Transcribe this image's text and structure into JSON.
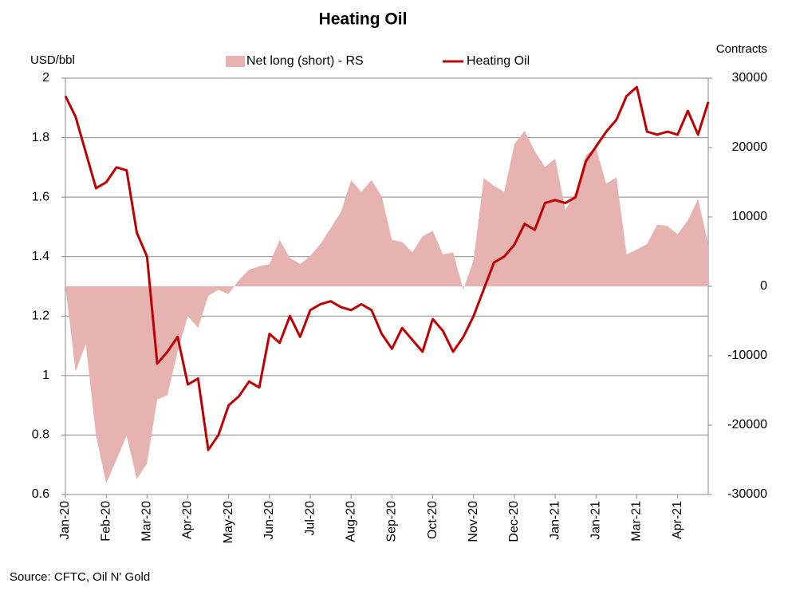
{
  "chart_data": {
    "type": "line",
    "title": "Heating Oil",
    "y_label": "USD/bbl",
    "y2_label": "Contracts",
    "source": "Source: CFTC, Oil N' Gold",
    "categories": [
      "Jan-20",
      null,
      null,
      null,
      "Feb-20",
      null,
      null,
      null,
      "Mar-20",
      null,
      null,
      null,
      "Apr-20",
      null,
      null,
      null,
      "May-20",
      null,
      null,
      null,
      "Jun-20",
      null,
      null,
      null,
      "Jul-20",
      null,
      null,
      null,
      "Aug-20",
      null,
      null,
      null,
      "Sep-20",
      null,
      null,
      null,
      "Oct-20",
      null,
      null,
      null,
      "Nov-20",
      null,
      null,
      null,
      "Dec-20",
      null,
      null,
      null,
      "Jan-21",
      null,
      null,
      null,
      "Jan-21",
      null,
      null,
      null,
      "Mar-21",
      null,
      null,
      null,
      "Apr-21",
      null,
      null,
      null
    ],
    "series": [
      {
        "name": "Net long (short) - RS",
        "type": "area",
        "axis": "y2",
        "color": "#e6b3b0",
        "values": [
          0,
          -12300,
          -8300,
          -21500,
          -28400,
          -25000,
          -21500,
          -27800,
          -25500,
          -16300,
          -15700,
          -9400,
          -4300,
          -6000,
          -1400,
          -500,
          -1100,
          900,
          2400,
          2900,
          3200,
          6700,
          4100,
          3200,
          4400,
          6100,
          8400,
          10700,
          15300,
          13600,
          15300,
          13000,
          6700,
          6400,
          4900,
          7200,
          8000,
          4600,
          4900,
          -500,
          3800,
          15600,
          14500,
          13600,
          20500,
          22400,
          19500,
          17200,
          18400,
          11000,
          13600,
          18900,
          20000,
          14800,
          15700,
          4600,
          5300,
          6100,
          8900,
          8700,
          7500,
          9500,
          12600,
          6100
        ]
      },
      {
        "name": "Heating Oil",
        "type": "line",
        "color": "#c00000",
        "values": [
          1.94,
          1.87,
          1.75,
          1.63,
          1.65,
          1.7,
          1.69,
          1.48,
          1.4,
          1.04,
          1.08,
          1.13,
          0.97,
          0.99,
          0.75,
          0.8,
          0.9,
          0.93,
          0.98,
          0.96,
          1.14,
          1.11,
          1.2,
          1.13,
          1.22,
          1.24,
          1.25,
          1.23,
          1.22,
          1.24,
          1.22,
          1.14,
          1.09,
          1.16,
          1.12,
          1.08,
          1.19,
          1.15,
          1.08,
          1.13,
          1.2,
          1.29,
          1.38,
          1.4,
          1.44,
          1.51,
          1.49,
          1.58,
          1.59,
          1.58,
          1.6,
          1.72,
          1.77,
          1.82,
          1.86,
          1.94,
          1.97,
          1.82,
          1.81,
          1.82,
          1.81,
          1.89,
          1.81,
          1.92
        ]
      }
    ],
    "ylim": [
      0.6,
      2
    ],
    "yticks": [
      0.6,
      0.8,
      1,
      1.2,
      1.4,
      1.6,
      1.8,
      2
    ],
    "y2lim": [
      -30000,
      30000
    ],
    "y2ticks": [
      -30000,
      -20000,
      -10000,
      0,
      10000,
      20000,
      30000
    ],
    "grid": true
  }
}
